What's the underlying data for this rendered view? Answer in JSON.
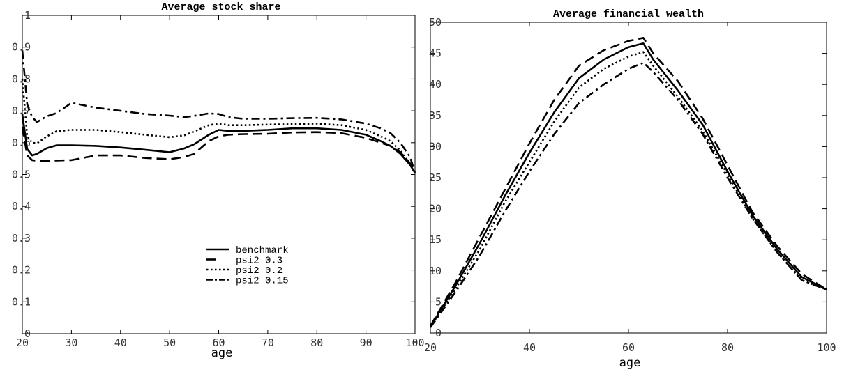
{
  "chart_data": [
    {
      "type": "line",
      "title": "Average stock share",
      "xlabel": "age",
      "ylabel": "",
      "xlim": [
        20,
        100
      ],
      "ylim": [
        0,
        1
      ],
      "xticks": [
        "20",
        "30",
        "40",
        "50",
        "60",
        "70",
        "80",
        "90",
        "100"
      ],
      "yticks": [
        "0",
        "0.1",
        "0.2",
        "0.3",
        "0.4",
        "0.5",
        "0.6",
        "0.7",
        "0.8",
        "0.9",
        "1"
      ],
      "legend": {
        "placement": "center",
        "entries": [
          "benchmark",
          "psi2 0.3",
          "psi2 0.2",
          "psi2 0.15"
        ]
      },
      "x": [
        20,
        21,
        22,
        23,
        25,
        27,
        30,
        35,
        40,
        45,
        50,
        53,
        55,
        58,
        60,
        62,
        65,
        70,
        75,
        80,
        85,
        90,
        93,
        95,
        97,
        99,
        100
      ],
      "series": [
        {
          "name": "benchmark",
          "style": "solid",
          "values": [
            0.69,
            0.58,
            0.56,
            0.565,
            0.583,
            0.592,
            0.592,
            0.59,
            0.585,
            0.578,
            0.57,
            0.582,
            0.595,
            0.625,
            0.64,
            0.637,
            0.637,
            0.64,
            0.645,
            0.645,
            0.64,
            0.625,
            0.605,
            0.59,
            0.565,
            0.53,
            0.505
          ]
        },
        {
          "name": "psi2 0.3",
          "style": "longdash",
          "values": [
            0.65,
            0.56,
            0.545,
            0.543,
            0.543,
            0.544,
            0.545,
            0.56,
            0.56,
            0.552,
            0.548,
            0.555,
            0.565,
            0.605,
            0.62,
            0.625,
            0.627,
            0.628,
            0.632,
            0.633,
            0.63,
            0.615,
            0.6,
            0.59,
            0.57,
            0.535,
            0.51
          ]
        },
        {
          "name": "psi2 0.2",
          "style": "dotted",
          "values": [
            0.8,
            0.62,
            0.6,
            0.598,
            0.62,
            0.636,
            0.64,
            0.64,
            0.633,
            0.625,
            0.617,
            0.623,
            0.635,
            0.655,
            0.66,
            0.655,
            0.655,
            0.657,
            0.658,
            0.66,
            0.655,
            0.64,
            0.62,
            0.605,
            0.575,
            0.53,
            0.505
          ]
        },
        {
          "name": "psi2 0.15",
          "style": "dashdot",
          "values": [
            0.89,
            0.72,
            0.68,
            0.665,
            0.683,
            0.693,
            0.725,
            0.71,
            0.7,
            0.69,
            0.685,
            0.68,
            0.684,
            0.692,
            0.69,
            0.68,
            0.675,
            0.675,
            0.677,
            0.678,
            0.673,
            0.66,
            0.645,
            0.63,
            0.6,
            0.555,
            0.505
          ]
        }
      ]
    },
    {
      "type": "line",
      "title": "Average financial wealth",
      "xlabel": "age",
      "ylabel": "",
      "xlim": [
        20,
        100
      ],
      "ylim": [
        0,
        50
      ],
      "xticks": [
        "20",
        "40",
        "60",
        "80",
        "100"
      ],
      "yticks": [
        "0",
        "5",
        "10",
        "15",
        "20",
        "25",
        "30",
        "35",
        "40",
        "45",
        "50"
      ],
      "x": [
        20,
        25,
        30,
        35,
        40,
        45,
        50,
        55,
        60,
        63,
        65,
        70,
        75,
        80,
        85,
        90,
        95,
        100
      ],
      "series": [
        {
          "style": "solid",
          "values": [
            1.0,
            7.5,
            14.5,
            22.0,
            29.0,
            35.5,
            41.0,
            44.0,
            46.0,
            46.6,
            44.0,
            39.0,
            33.5,
            26.0,
            19.0,
            13.5,
            9.0,
            7.0
          ]
        },
        {
          "style": "longdash",
          "values": [
            1.1,
            8.0,
            15.5,
            23.0,
            30.5,
            37.5,
            43.0,
            45.5,
            47.0,
            47.5,
            45.0,
            40.5,
            34.5,
            27.0,
            19.5,
            14.0,
            9.5,
            7.0
          ]
        },
        {
          "style": "dotted",
          "values": [
            1.0,
            7.0,
            13.5,
            21.0,
            27.5,
            34.0,
            39.5,
            42.5,
            44.5,
            45.2,
            43.0,
            38.0,
            32.5,
            25.5,
            18.5,
            13.0,
            8.5,
            7.0
          ]
        },
        {
          "style": "dashdot",
          "values": [
            0.9,
            6.5,
            12.5,
            19.5,
            26.0,
            32.0,
            37.0,
            40.0,
            42.5,
            43.5,
            42.0,
            37.5,
            32.0,
            25.0,
            18.5,
            13.0,
            8.5,
            7.0
          ]
        }
      ]
    }
  ]
}
